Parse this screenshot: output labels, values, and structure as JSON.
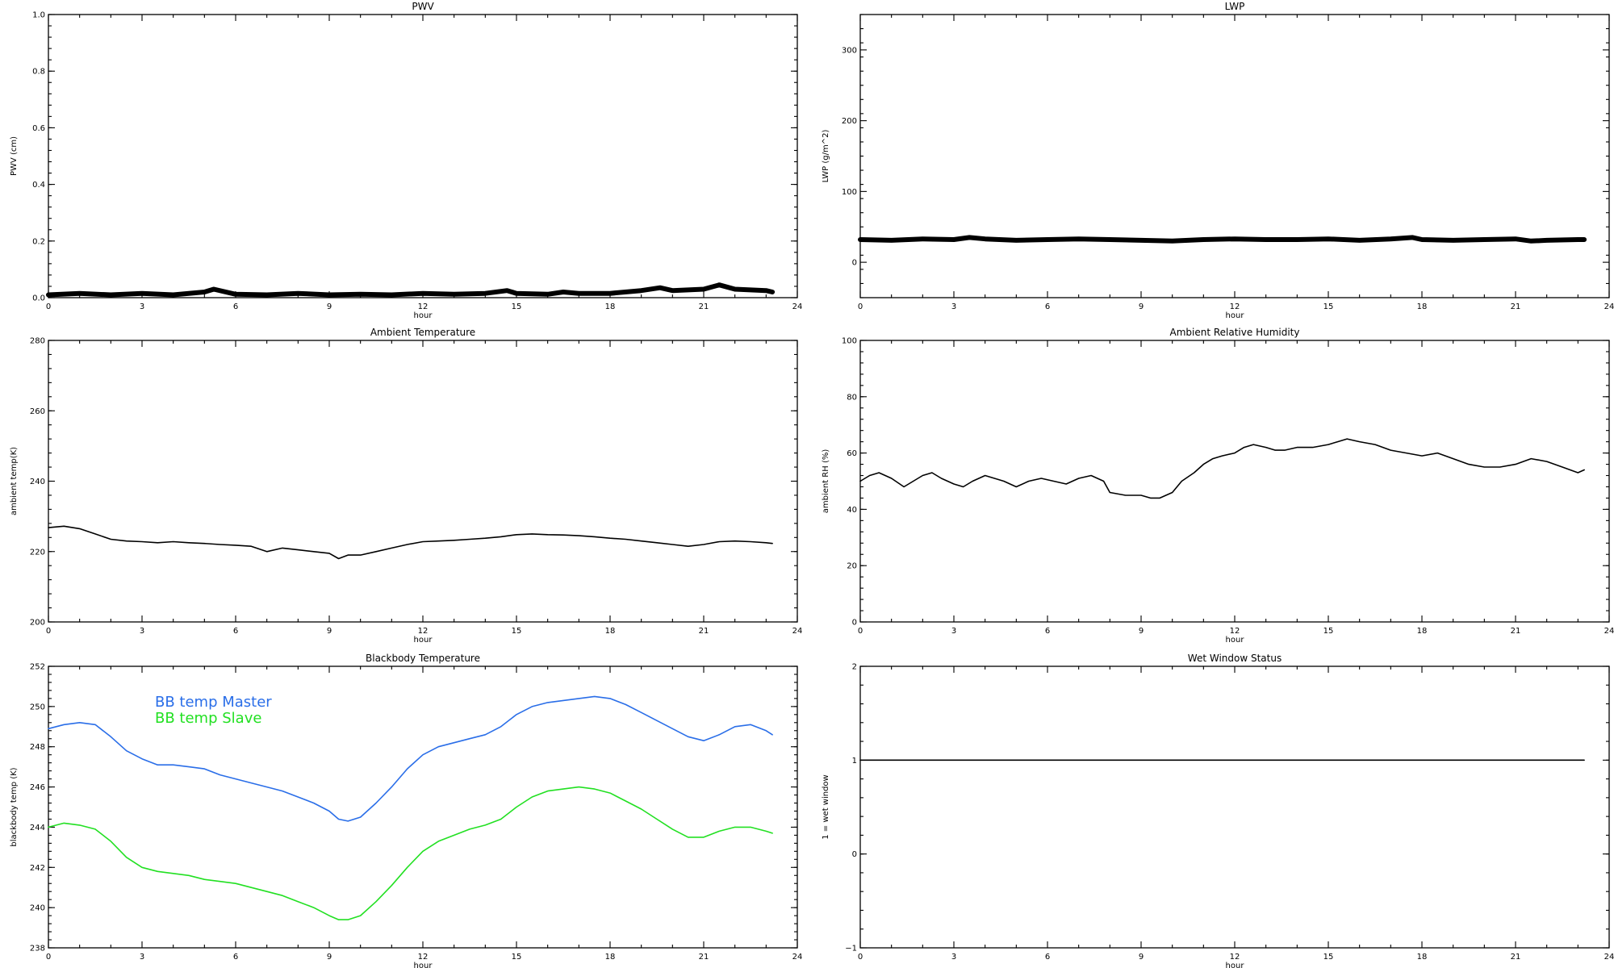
{
  "chart_data": [
    {
      "id": "pwv",
      "type": "line",
      "title": "PWV",
      "xlabel": "hour",
      "ylabel": "PWV (cm)",
      "xlim": [
        0,
        24
      ],
      "ylim": [
        0,
        1.0
      ],
      "xticks": [
        "0",
        "3",
        "6",
        "9",
        "12",
        "15",
        "18",
        "21",
        "24"
      ],
      "yticks": [
        "0.0",
        "0.2",
        "0.4",
        "0.6",
        "0.8",
        "1.0"
      ],
      "series": [
        {
          "color": "#000000",
          "x": [
            0,
            1,
            2,
            3,
            4,
            5,
            5.3,
            6,
            7,
            8,
            9,
            10,
            11,
            12,
            13,
            14,
            14.7,
            15,
            16,
            16.5,
            17,
            18,
            19,
            19.6,
            20,
            21,
            21.5,
            22,
            23,
            23.2
          ],
          "y": [
            0.01,
            0.015,
            0.01,
            0.015,
            0.01,
            0.02,
            0.03,
            0.012,
            0.01,
            0.015,
            0.01,
            0.012,
            0.01,
            0.015,
            0.012,
            0.015,
            0.025,
            0.015,
            0.012,
            0.02,
            0.015,
            0.015,
            0.025,
            0.035,
            0.025,
            0.03,
            0.045,
            0.03,
            0.025,
            0.02
          ]
        }
      ]
    },
    {
      "id": "lwp",
      "type": "line",
      "title": "LWP",
      "xlabel": "hour",
      "ylabel": "LWP (g/m^2)",
      "xlim": [
        0,
        24
      ],
      "ylim": [
        -50,
        350
      ],
      "xticks": [
        "0",
        "3",
        "6",
        "9",
        "12",
        "15",
        "18",
        "21",
        "24"
      ],
      "yticks": [
        "0",
        "100",
        "200",
        "300"
      ],
      "series": [
        {
          "color": "#000000",
          "x": [
            0,
            1,
            2,
            3,
            3.5,
            4,
            5,
            6,
            7,
            8,
            9,
            10,
            11,
            12,
            13,
            14,
            15,
            16,
            17,
            17.7,
            18,
            19,
            20,
            21,
            21.5,
            22,
            23,
            23.2
          ],
          "y": [
            32,
            31,
            33,
            32,
            35,
            33,
            31,
            32,
            33,
            32,
            31,
            30,
            32,
            33,
            32,
            32,
            33,
            31,
            33,
            35,
            32,
            31,
            32,
            33,
            30,
            31,
            32,
            32
          ]
        }
      ]
    },
    {
      "id": "ambient-temp",
      "type": "line",
      "title": "Ambient Temperature",
      "xlabel": "hour",
      "ylabel": "ambient temp(K)",
      "xlim": [
        0,
        24
      ],
      "ylim": [
        200,
        280
      ],
      "xticks": [
        "0",
        "3",
        "6",
        "9",
        "12",
        "15",
        "18",
        "21",
        "24"
      ],
      "yticks": [
        "200",
        "220",
        "240",
        "260",
        "280"
      ],
      "series": [
        {
          "color": "#000000",
          "x": [
            0,
            0.5,
            1,
            1.5,
            2,
            2.5,
            3,
            3.5,
            4,
            4.5,
            5,
            5.5,
            6,
            6.5,
            7,
            7.5,
            8,
            8.5,
            9,
            9.3,
            9.6,
            10,
            10.5,
            11,
            11.5,
            12,
            12.5,
            13,
            13.5,
            14,
            14.5,
            15,
            15.5,
            16,
            16.5,
            17,
            17.5,
            18,
            18.5,
            19,
            19.5,
            20,
            20.5,
            21,
            21.5,
            22,
            22.5,
            23,
            23.2
          ],
          "y": [
            226.8,
            227.2,
            226.5,
            225.0,
            223.5,
            223.0,
            222.8,
            222.5,
            222.8,
            222.5,
            222.3,
            222.0,
            221.8,
            221.5,
            220.0,
            221.0,
            220.5,
            220.0,
            219.5,
            218.0,
            219.0,
            219.0,
            220.0,
            221.0,
            222.0,
            222.8,
            223.0,
            223.2,
            223.5,
            223.8,
            224.2,
            224.8,
            225.0,
            224.8,
            224.7,
            224.5,
            224.2,
            223.8,
            223.5,
            223.0,
            222.5,
            222.0,
            221.5,
            222.0,
            222.8,
            223.0,
            222.8,
            222.5,
            222.3
          ]
        }
      ]
    },
    {
      "id": "ambient-rh",
      "type": "line",
      "title": "Ambient Relative Humidity",
      "xlabel": "hour",
      "ylabel": "ambient RH (%)",
      "xlim": [
        0,
        24
      ],
      "ylim": [
        0,
        100
      ],
      "xticks": [
        "0",
        "3",
        "6",
        "9",
        "12",
        "15",
        "18",
        "21",
        "24"
      ],
      "yticks": [
        "0",
        "20",
        "40",
        "60",
        "80",
        "100"
      ],
      "series": [
        {
          "color": "#000000",
          "x": [
            0,
            0.3,
            0.6,
            1,
            1.4,
            1.7,
            2,
            2.3,
            2.6,
            3,
            3.3,
            3.6,
            4,
            4.3,
            4.6,
            5,
            5.4,
            5.8,
            6.2,
            6.6,
            7,
            7.4,
            7.8,
            8,
            8.5,
            9,
            9.3,
            9.6,
            10,
            10.3,
            10.7,
            11,
            11.3,
            11.6,
            12,
            12.3,
            12.6,
            13,
            13.3,
            13.6,
            14,
            14.5,
            15,
            15.3,
            15.6,
            16,
            16.5,
            17,
            17.5,
            18,
            18.5,
            19,
            19.5,
            20,
            20.5,
            21,
            21.5,
            22,
            22.5,
            23,
            23.2
          ],
          "y": [
            50,
            52,
            53,
            51,
            48,
            50,
            52,
            53,
            51,
            49,
            48,
            50,
            52,
            51,
            50,
            48,
            50,
            51,
            50,
            49,
            51,
            52,
            50,
            46,
            45,
            45,
            44,
            44,
            46,
            50,
            53,
            56,
            58,
            59,
            60,
            62,
            63,
            62,
            61,
            61,
            62,
            62,
            63,
            64,
            65,
            64,
            63,
            61,
            60,
            59,
            60,
            58,
            56,
            55,
            55,
            56,
            58,
            57,
            55,
            53,
            54
          ]
        }
      ]
    },
    {
      "id": "blackbody-temp",
      "type": "line",
      "title": "Blackbody Temperature",
      "xlabel": "hour",
      "ylabel": "blackbody temp (K)",
      "xlim": [
        0,
        24
      ],
      "ylim": [
        238,
        252
      ],
      "xticks": [
        "0",
        "3",
        "6",
        "9",
        "12",
        "15",
        "18",
        "21",
        "24"
      ],
      "yticks": [
        "238",
        "240",
        "242",
        "244",
        "246",
        "248",
        "250",
        "252"
      ],
      "legend": [
        "BB temp Master",
        "BB temp Slave"
      ],
      "series": [
        {
          "name": "BB temp Master",
          "color": "#2a6ee8",
          "x": [
            0,
            0.5,
            1,
            1.5,
            2,
            2.5,
            3,
            3.5,
            4,
            4.5,
            5,
            5.5,
            6,
            6.5,
            7,
            7.5,
            8,
            8.5,
            9,
            9.3,
            9.6,
            10,
            10.5,
            11,
            11.5,
            12,
            12.5,
            13,
            13.5,
            14,
            14.5,
            15,
            15.5,
            16,
            16.5,
            17,
            17.5,
            18,
            18.5,
            19,
            19.5,
            20,
            20.5,
            21,
            21.5,
            22,
            22.5,
            23,
            23.2
          ],
          "y": [
            248.9,
            249.1,
            249.2,
            249.1,
            248.5,
            247.8,
            247.4,
            247.1,
            247.1,
            247.0,
            246.9,
            246.6,
            246.4,
            246.2,
            246.0,
            245.8,
            245.5,
            245.2,
            244.8,
            244.4,
            244.3,
            244.5,
            245.2,
            246.0,
            246.9,
            247.6,
            248.0,
            248.2,
            248.4,
            248.6,
            249.0,
            249.6,
            250.0,
            250.2,
            250.3,
            250.4,
            250.5,
            250.4,
            250.1,
            249.7,
            249.3,
            248.9,
            248.5,
            248.3,
            248.6,
            249.0,
            249.1,
            248.8,
            248.6
          ]
        },
        {
          "name": "BB temp Slave",
          "color": "#22e022",
          "x": [
            0,
            0.5,
            1,
            1.5,
            2,
            2.5,
            3,
            3.5,
            4,
            4.5,
            5,
            5.5,
            6,
            6.5,
            7,
            7.5,
            8,
            8.5,
            9,
            9.3,
            9.6,
            10,
            10.5,
            11,
            11.5,
            12,
            12.5,
            13,
            13.5,
            14,
            14.5,
            15,
            15.5,
            16,
            16.5,
            17,
            17.5,
            18,
            18.5,
            19,
            19.5,
            20,
            20.5,
            21,
            21.5,
            22,
            22.5,
            23,
            23.2
          ],
          "y": [
            244.0,
            244.2,
            244.1,
            243.9,
            243.3,
            242.5,
            242.0,
            241.8,
            241.7,
            241.6,
            241.4,
            241.3,
            241.2,
            241.0,
            240.8,
            240.6,
            240.3,
            240.0,
            239.6,
            239.4,
            239.4,
            239.6,
            240.3,
            241.1,
            242.0,
            242.8,
            243.3,
            243.6,
            243.9,
            244.1,
            244.4,
            245.0,
            245.5,
            245.8,
            245.9,
            246.0,
            245.9,
            245.7,
            245.3,
            244.9,
            244.4,
            243.9,
            243.5,
            243.5,
            243.8,
            244.0,
            244.0,
            243.8,
            243.7
          ]
        }
      ]
    },
    {
      "id": "wet-window",
      "type": "line",
      "title": "Wet Window Status",
      "xlabel": "hour",
      "ylabel": "1 = wet window",
      "xlim": [
        0,
        24
      ],
      "ylim": [
        -1,
        2
      ],
      "xticks": [
        "0",
        "3",
        "6",
        "9",
        "12",
        "15",
        "18",
        "21",
        "24"
      ],
      "yticks": [
        "−1",
        "0",
        "1",
        "2"
      ],
      "series": [
        {
          "color": "#000000",
          "x": [
            0,
            23.2
          ],
          "y": [
            1,
            1
          ]
        }
      ]
    }
  ]
}
